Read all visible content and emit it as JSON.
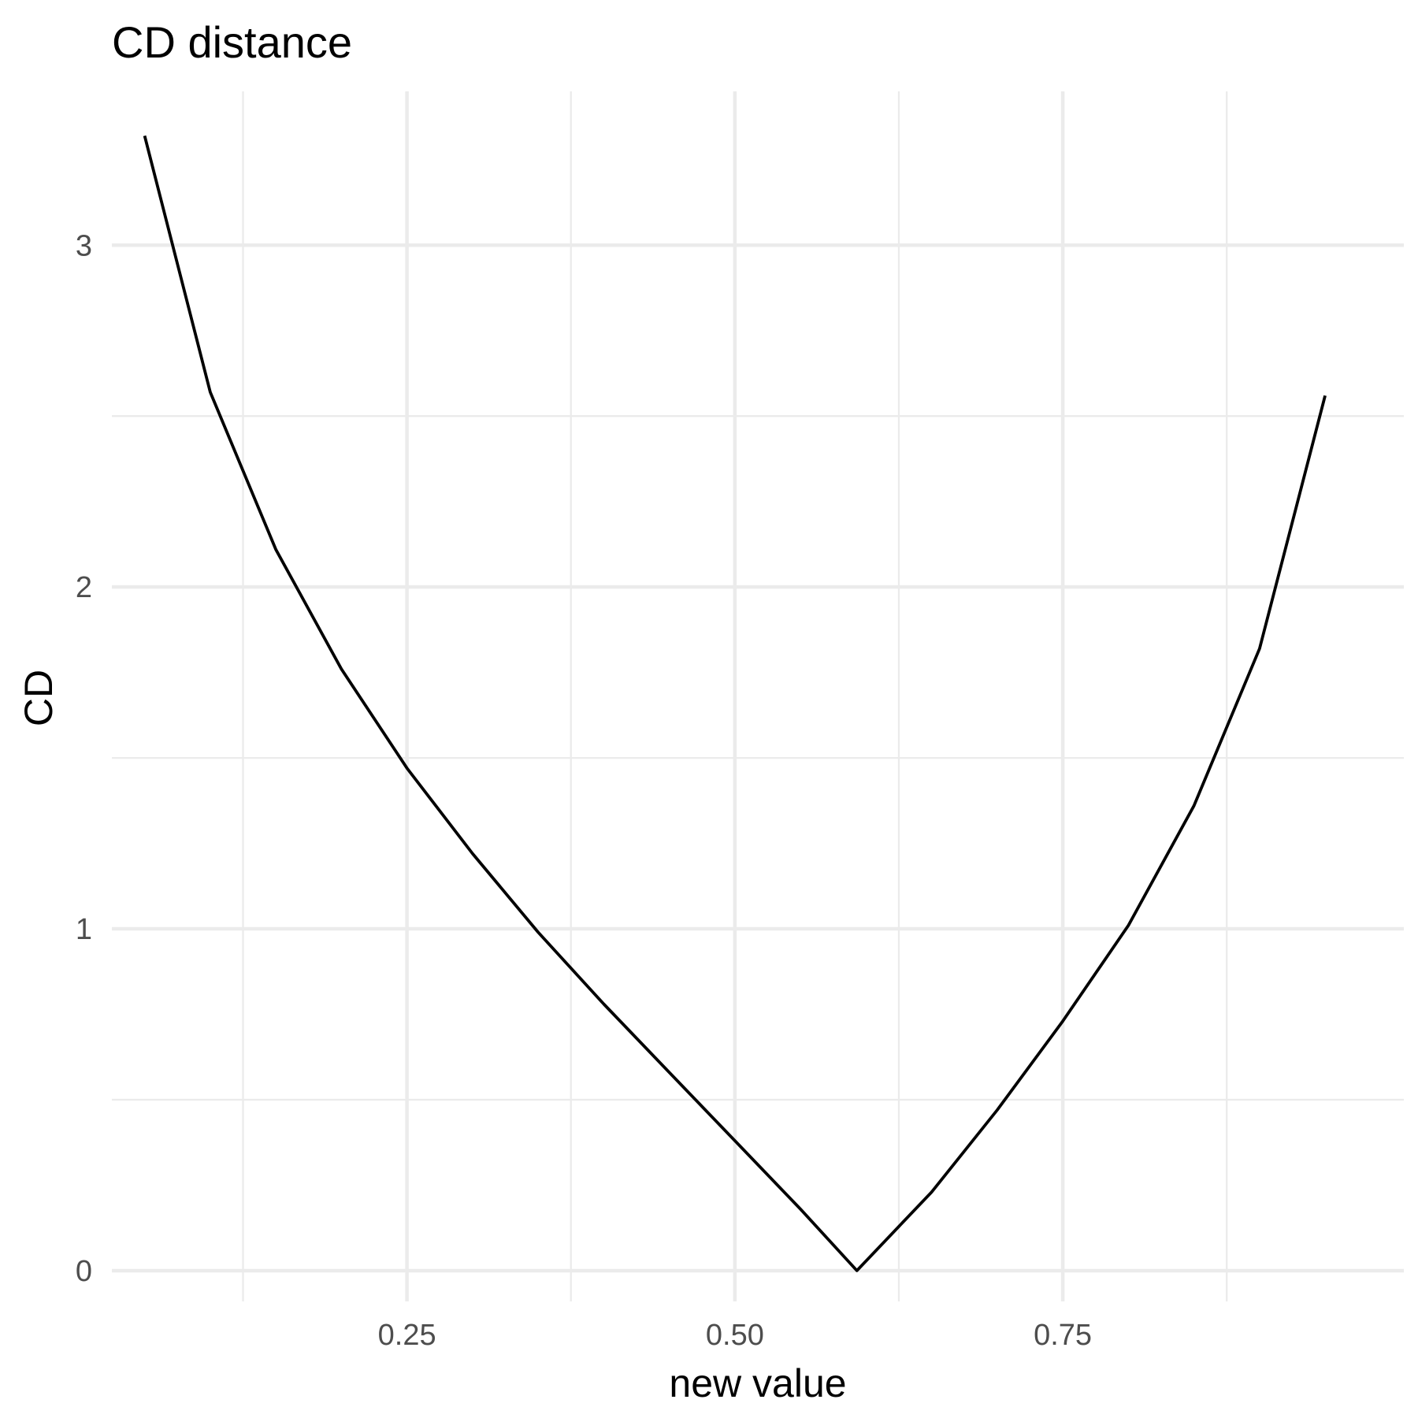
{
  "chart_data": {
    "type": "line",
    "title": "CD distance",
    "xlabel": "new value",
    "ylabel": "CD",
    "xlim": [
      0.025,
      1.01
    ],
    "ylim": [
      -0.09,
      3.45
    ],
    "x_ticks": [
      0.25,
      0.5,
      0.75
    ],
    "x_tick_labels": [
      "0.25",
      "0.50",
      "0.75"
    ],
    "x_minor_ticks": [
      0.125,
      0.375,
      0.625,
      0.875
    ],
    "y_ticks": [
      0,
      1,
      2,
      3
    ],
    "y_tick_labels": [
      "0",
      "1",
      "2",
      "3"
    ],
    "y_minor_ticks": [
      0.5,
      1.5,
      2.5
    ],
    "grid": true,
    "legend": "none",
    "series": [
      {
        "color": "#000000",
        "x": [
          0.05,
          0.1,
          0.15,
          0.2,
          0.25,
          0.3,
          0.35,
          0.4,
          0.45,
          0.5,
          0.55,
          0.593,
          0.65,
          0.7,
          0.75,
          0.8,
          0.85,
          0.9,
          0.95
        ],
        "y": [
          3.32,
          2.57,
          2.11,
          1.76,
          1.47,
          1.22,
          0.99,
          0.78,
          0.58,
          0.38,
          0.18,
          0.0,
          0.23,
          0.47,
          0.73,
          1.01,
          1.36,
          1.82,
          2.56
        ]
      }
    ]
  }
}
